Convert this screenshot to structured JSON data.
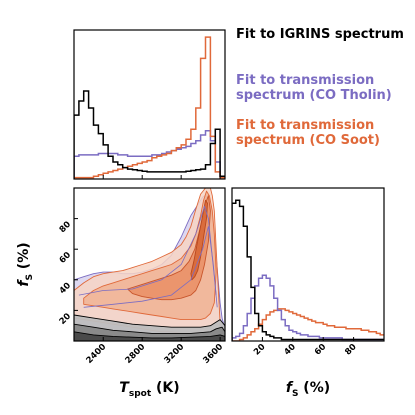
{
  "chart_data": {
    "type": "corner",
    "colors": {
      "igrins": "#000000",
      "tholin": "#7b6cc2",
      "soot": "#e0693a"
    },
    "legend": [
      {
        "series": "igrins",
        "text": "Fit to IGRINS spectrum"
      },
      {
        "series": "tholin",
        "text": "Fit to transmission spectrum (CO Tholin)"
      },
      {
        "series": "soot",
        "text": "Fit to transmission spectrum (CO Soot)"
      }
    ],
    "x_param": {
      "xlim": [
        2100,
        3650
      ],
      "ticks": [
        2400,
        2800,
        3200,
        3600
      ],
      "label": "T",
      "label_sub": "spot",
      "label_unit": "(K)"
    },
    "y_param": {
      "ylim": [
        0,
        100
      ],
      "ticks": [
        20,
        40,
        60,
        80
      ],
      "label": "f",
      "label_sub": "S",
      "label_unit": "(%)"
    },
    "top_histograms": [
      {
        "series": "igrins",
        "x": [
          2100,
          2150,
          2200,
          2250,
          2300,
          2350,
          2400,
          2450,
          2500,
          2550,
          2600,
          2650,
          2700,
          2750,
          2800,
          2850,
          2900,
          2950,
          3000,
          3050,
          3100,
          3150,
          3200,
          3250,
          3300,
          3350,
          3400,
          3450,
          3500,
          3550,
          3600
        ],
        "y": [
          0.45,
          0.55,
          0.62,
          0.5,
          0.38,
          0.32,
          0.24,
          0.16,
          0.12,
          0.1,
          0.08,
          0.07,
          0.065,
          0.06,
          0.055,
          0.05,
          0.05,
          0.05,
          0.05,
          0.05,
          0.05,
          0.05,
          0.05,
          0.055,
          0.06,
          0.065,
          0.07,
          0.1,
          0.25,
          0.35,
          0.02
        ]
      },
      {
        "series": "tholin",
        "x": [
          2100,
          2150,
          2200,
          2250,
          2300,
          2350,
          2400,
          2450,
          2500,
          2550,
          2600,
          2650,
          2700,
          2750,
          2800,
          2850,
          2900,
          2950,
          3000,
          3050,
          3100,
          3150,
          3200,
          3250,
          3300,
          3350,
          3400,
          3450,
          3500,
          3550,
          3600
        ],
        "y": [
          0.16,
          0.17,
          0.17,
          0.17,
          0.17,
          0.18,
          0.18,
          0.18,
          0.18,
          0.17,
          0.17,
          0.16,
          0.16,
          0.16,
          0.16,
          0.16,
          0.17,
          0.17,
          0.18,
          0.19,
          0.2,
          0.21,
          0.22,
          0.23,
          0.25,
          0.27,
          0.31,
          0.34,
          0.27,
          0.12,
          0.02
        ]
      },
      {
        "series": "soot",
        "x": [
          2100,
          2150,
          2200,
          2250,
          2300,
          2350,
          2400,
          2450,
          2500,
          2550,
          2600,
          2650,
          2700,
          2750,
          2800,
          2850,
          2900,
          2950,
          3000,
          3050,
          3100,
          3150,
          3200,
          3250,
          3300,
          3350,
          3400,
          3450,
          3500,
          3550,
          3600
        ],
        "y": [
          0.01,
          0.01,
          0.01,
          0.01,
          0.02,
          0.03,
          0.04,
          0.05,
          0.06,
          0.07,
          0.08,
          0.09,
          0.1,
          0.11,
          0.12,
          0.13,
          0.15,
          0.16,
          0.17,
          0.18,
          0.2,
          0.22,
          0.24,
          0.28,
          0.35,
          0.5,
          0.85,
          1.0,
          0.3,
          0.05,
          0.01
        ]
      }
    ],
    "right_histograms": [
      {
        "series": "igrins",
        "x": [
          0,
          2.5,
          5,
          7.5,
          10,
          12.5,
          15,
          17.5,
          20,
          22.5,
          25,
          27.5,
          30,
          32.5,
          35,
          37.5,
          40,
          42.5,
          45,
          47.5,
          50,
          52.5,
          55,
          57.5,
          60,
          62.5,
          65,
          67.5,
          70,
          72.5,
          75,
          77.5,
          80,
          82.5,
          85,
          87.5,
          90,
          92.5,
          95,
          97.5
        ],
        "y": [
          0.9,
          0.92,
          0.88,
          0.75,
          0.55,
          0.35,
          0.18,
          0.1,
          0.06,
          0.04,
          0.03,
          0.02,
          0.02,
          0.01,
          0.01,
          0.01,
          0.01,
          0.01,
          0.01,
          0.01,
          0.01,
          0.01,
          0.01,
          0.01,
          0.01,
          0.01,
          0.01,
          0.01,
          0.01,
          0.01,
          0.01,
          0.01,
          0.01,
          0.01,
          0.01,
          0.01,
          0.01,
          0.01,
          0.01,
          0.01
        ]
      },
      {
        "series": "tholin",
        "x": [
          0,
          2.5,
          5,
          7.5,
          10,
          12.5,
          15,
          17.5,
          20,
          22.5,
          25,
          27.5,
          30,
          32.5,
          35,
          37.5,
          40,
          42.5,
          45,
          47.5,
          50,
          52.5,
          55,
          57.5,
          60,
          62.5,
          65,
          67.5,
          70,
          72.5,
          75,
          77.5,
          80,
          82.5,
          85,
          87.5,
          90,
          92.5,
          95,
          97.5
        ],
        "y": [
          0.02,
          0.03,
          0.05,
          0.1,
          0.18,
          0.28,
          0.36,
          0.41,
          0.43,
          0.41,
          0.36,
          0.28,
          0.2,
          0.14,
          0.1,
          0.07,
          0.06,
          0.05,
          0.04,
          0.04,
          0.03,
          0.03,
          0.03,
          0.02,
          0.02,
          0.02,
          0.02,
          0.02,
          0.02,
          0.01,
          0.01,
          0.01,
          0.01,
          0.01,
          0.01,
          0.01,
          0.01,
          0.01,
          0.01,
          0.01
        ]
      },
      {
        "series": "soot",
        "x": [
          0,
          2.5,
          5,
          7.5,
          10,
          12.5,
          15,
          17.5,
          20,
          22.5,
          25,
          27.5,
          30,
          32.5,
          35,
          37.5,
          40,
          42.5,
          45,
          47.5,
          50,
          52.5,
          55,
          57.5,
          60,
          62.5,
          65,
          67.5,
          70,
          72.5,
          75,
          77.5,
          80,
          82.5,
          85,
          87.5,
          90,
          92.5,
          95,
          97.5
        ],
        "y": [
          0.0,
          0.0,
          0.01,
          0.02,
          0.04,
          0.06,
          0.08,
          0.11,
          0.14,
          0.17,
          0.19,
          0.2,
          0.21,
          0.21,
          0.2,
          0.19,
          0.18,
          0.17,
          0.16,
          0.15,
          0.14,
          0.13,
          0.12,
          0.12,
          0.11,
          0.1,
          0.1,
          0.09,
          0.09,
          0.09,
          0.08,
          0.08,
          0.08,
          0.08,
          0.07,
          0.07,
          0.06,
          0.06,
          0.05,
          0.04
        ]
      }
    ],
    "contours_2d": [
      {
        "series": "tholin",
        "level": 1,
        "x": [
          2100,
          2200,
          2300,
          2400,
          2500,
          2600,
          2700,
          2800,
          2900,
          3000,
          3100,
          3150,
          3200,
          3250,
          3300,
          3350,
          3380,
          3400,
          3420,
          3440,
          3460,
          3480,
          3500,
          3520,
          3540,
          3560,
          3580,
          3600,
          3620,
          3650,
          3650,
          3600,
          3500,
          3400,
          3300,
          3200,
          3100,
          3000,
          2900,
          2800,
          2700,
          2600,
          2500,
          2400,
          2300,
          2200,
          2100
        ],
        "y": [
          40,
          42,
          44,
          45,
          45,
          44,
          44,
          45,
          47,
          50,
          56,
          62,
          68,
          75,
          82,
          87,
          90,
          92,
          94,
          95,
          94,
          92,
          88,
          80,
          70,
          55,
          40,
          25,
          15,
          8,
          0,
          0,
          0,
          0,
          0,
          0,
          0,
          0,
          0,
          0,
          0,
          0,
          0,
          0,
          0,
          0,
          0
        ]
      },
      {
        "series": "soot",
        "level": 1,
        "x": [
          2100,
          2200,
          2300,
          2400,
          2500,
          2600,
          2700,
          2800,
          2900,
          3000,
          3100,
          3200,
          3250,
          3300,
          3350,
          3400,
          3450,
          3480,
          3500,
          3520,
          3540,
          3560,
          3580,
          3600,
          3600,
          3500,
          3400,
          3300,
          3200,
          3100,
          3000,
          2900,
          2800,
          2700,
          2600,
          2500,
          2400,
          2300,
          2200,
          2100
        ],
        "y": [
          33,
          38,
          42,
          44,
          45,
          46,
          48,
          50,
          52,
          55,
          58,
          63,
          68,
          75,
          86,
          96,
          100,
          100,
          100,
          95,
          85,
          60,
          35,
          12,
          6,
          5,
          5,
          5,
          5,
          6,
          6,
          7,
          8,
          9,
          10,
          11,
          12,
          13,
          14,
          15
        ]
      },
      {
        "series": "soot",
        "level": 2,
        "x": [
          2200,
          2300,
          2400,
          2500,
          2600,
          2700,
          2800,
          2900,
          3000,
          3100,
          3200,
          3300,
          3350,
          3400,
          3430,
          3460,
          3490,
          3520,
          3540,
          3560,
          3540,
          3500,
          3450,
          3400,
          3300,
          3200,
          3100,
          3000,
          2900,
          2800,
          2700,
          2600,
          2500,
          2400,
          2300,
          2200
        ],
        "y": [
          28,
          33,
          36,
          38,
          40,
          42,
          44,
          46,
          48,
          50,
          54,
          62,
          70,
          82,
          92,
          98,
          95,
          85,
          70,
          45,
          25,
          18,
          15,
          14,
          14,
          14,
          15,
          16,
          17,
          18,
          19,
          20,
          21,
          22,
          23,
          24
        ]
      },
      {
        "series": "soot",
        "level": 3,
        "x": [
          2650,
          2800,
          2950,
          3100,
          3200,
          3280,
          3340,
          3380,
          3420,
          3450,
          3480,
          3500,
          3480,
          3440,
          3400,
          3350,
          3300,
          3200,
          3100,
          3000,
          2900,
          2800,
          2700
        ],
        "y": [
          34,
          37,
          40,
          43,
          46,
          52,
          60,
          70,
          80,
          90,
          95,
          85,
          65,
          50,
          40,
          33,
          30,
          28,
          27,
          27,
          28,
          29,
          31
        ]
      },
      {
        "series": "soot",
        "level": 4,
        "x": [
          3300,
          3330,
          3360,
          3390,
          3420,
          3450,
          3470,
          3460,
          3430,
          3400,
          3370,
          3340,
          3310
        ],
        "y": [
          44,
          52,
          62,
          72,
          82,
          92,
          90,
          80,
          68,
          55,
          46,
          42,
          40
        ]
      },
      {
        "series": "igrins",
        "level": 1,
        "x": [
          2100,
          2300,
          2500,
          2700,
          2900,
          3100,
          3300,
          3400,
          3500,
          3550,
          3600,
          3650,
          3650,
          2100
        ],
        "y": [
          17,
          15,
          13,
          11,
          10,
          9,
          9,
          9,
          10,
          12,
          14,
          10,
          0,
          0
        ]
      },
      {
        "series": "igrins",
        "level": 2,
        "x": [
          2100,
          2300,
          2500,
          2700,
          2900,
          3100,
          3300,
          3500,
          3560,
          3620,
          3650,
          3650,
          2100
        ],
        "y": [
          11,
          9,
          7,
          6,
          5,
          5,
          5,
          6,
          8,
          9,
          6,
          0,
          0
        ]
      },
      {
        "series": "igrins",
        "level": 3,
        "x": [
          2100,
          2300,
          2500,
          2700,
          2900,
          3100,
          3300,
          3500,
          3600,
          3650,
          3650,
          2100
        ],
        "y": [
          6,
          4,
          3,
          2.5,
          2,
          2,
          2.5,
          3,
          4,
          3,
          0,
          0
        ]
      }
    ]
  }
}
